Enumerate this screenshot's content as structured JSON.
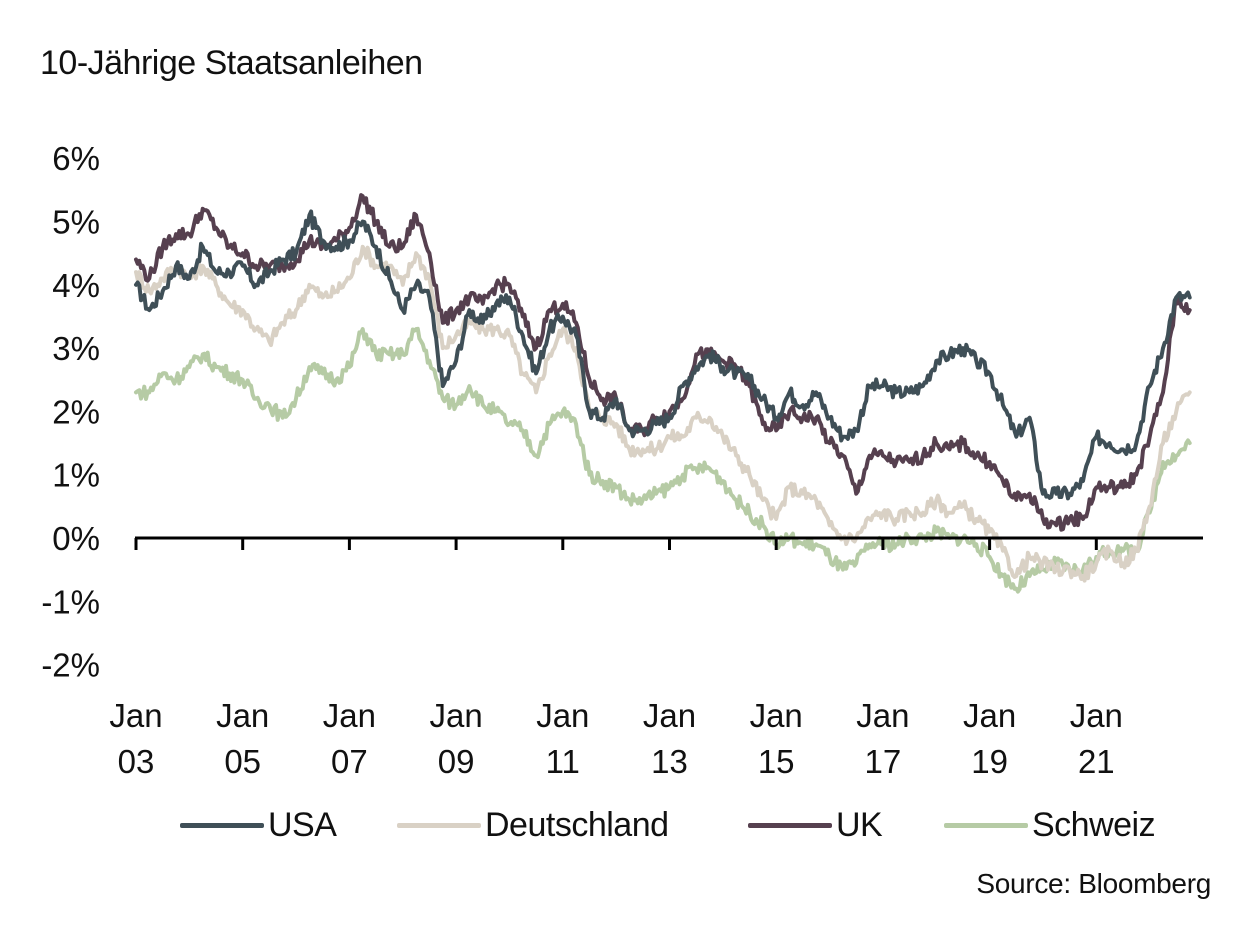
{
  "chart_data": {
    "type": "line",
    "title": "10-Jährige Staatsanleihen",
    "xlabel": "",
    "ylabel": "",
    "source": "Source: Bloomberg",
    "ylim": [
      -2,
      6
    ],
    "yticks": [
      6,
      5,
      4,
      3,
      2,
      1,
      0,
      -1,
      -2
    ],
    "ytick_labels": [
      "6%",
      "5%",
      "4%",
      "3%",
      "2%",
      "1%",
      "0%",
      "-1%",
      "-2%"
    ],
    "xlim": [
      2003.0,
      2023.0
    ],
    "xticks": [
      2003,
      2005,
      2007,
      2009,
      2011,
      2013,
      2015,
      2017,
      2019,
      2021
    ],
    "xtick_labels": [
      [
        "Jan",
        "03"
      ],
      [
        "Jan",
        "05"
      ],
      [
        "Jan",
        "07"
      ],
      [
        "Jan",
        "09"
      ],
      [
        "Jan",
        "11"
      ],
      [
        "Jan",
        "13"
      ],
      [
        "Jan",
        "15"
      ],
      [
        "Jan",
        "17"
      ],
      [
        "Jan",
        "19"
      ],
      [
        "Jan",
        "21"
      ]
    ],
    "grid": false,
    "legend_position": "bottom",
    "x_frequency": "quarterly, starting Q1 2003",
    "x_start": 2003.0,
    "x_step": 0.25,
    "series": [
      {
        "name": "USA",
        "color": "#3f4f57",
        "values": [
          4.0,
          3.6,
          3.9,
          4.3,
          4.1,
          4.6,
          4.2,
          4.2,
          4.3,
          4.0,
          4.2,
          4.4,
          4.5,
          5.1,
          4.7,
          4.6,
          4.7,
          5.0,
          4.6,
          4.1,
          3.6,
          4.0,
          3.8,
          2.4,
          2.8,
          3.6,
          3.4,
          3.7,
          3.8,
          3.2,
          2.6,
          3.3,
          3.5,
          3.2,
          2.0,
          1.9,
          2.2,
          1.7,
          1.7,
          1.8,
          1.9,
          2.4,
          2.7,
          2.9,
          2.7,
          2.6,
          2.5,
          2.2,
          1.9,
          2.3,
          2.1,
          2.3,
          1.9,
          1.6,
          1.7,
          2.4,
          2.4,
          2.3,
          2.3,
          2.4,
          2.8,
          2.9,
          3.0,
          2.8,
          2.6,
          2.1,
          1.6,
          1.9,
          0.7,
          0.7,
          0.7,
          0.9,
          1.6,
          1.5,
          1.4,
          1.5,
          2.4,
          3.0,
          3.8,
          3.8
        ]
      },
      {
        "name": "Deutschland",
        "color": "#d9d1c5",
        "values": [
          4.2,
          3.9,
          4.1,
          4.3,
          4.1,
          4.3,
          4.0,
          3.7,
          3.6,
          3.3,
          3.1,
          3.4,
          3.6,
          4.0,
          3.8,
          3.9,
          4.1,
          4.6,
          4.3,
          4.3,
          4.0,
          4.5,
          4.1,
          3.0,
          3.2,
          3.4,
          3.3,
          3.3,
          3.2,
          2.6,
          2.3,
          2.9,
          3.3,
          3.0,
          2.0,
          1.9,
          1.8,
          1.4,
          1.4,
          1.4,
          1.6,
          1.6,
          1.9,
          1.9,
          1.6,
          1.3,
          1.0,
          0.6,
          0.3,
          0.8,
          0.7,
          0.6,
          0.2,
          0.0,
          0.0,
          0.3,
          0.4,
          0.3,
          0.4,
          0.4,
          0.6,
          0.4,
          0.5,
          0.3,
          0.1,
          -0.2,
          -0.6,
          -0.3,
          -0.4,
          -0.5,
          -0.5,
          -0.6,
          -0.4,
          -0.2,
          -0.4,
          -0.2,
          0.5,
          1.5,
          2.0,
          2.3
        ]
      },
      {
        "name": "UK",
        "color": "#56404f",
        "values": [
          4.4,
          4.1,
          4.6,
          4.8,
          4.8,
          5.2,
          4.9,
          4.6,
          4.5,
          4.3,
          4.3,
          4.3,
          4.4,
          4.7,
          4.6,
          4.7,
          4.9,
          5.4,
          5.0,
          4.6,
          4.6,
          5.1,
          4.5,
          3.4,
          3.6,
          3.8,
          3.7,
          4.0,
          4.0,
          3.5,
          3.0,
          3.6,
          3.7,
          3.4,
          2.5,
          2.2,
          2.2,
          1.7,
          1.7,
          1.9,
          2.0,
          2.2,
          2.9,
          2.9,
          2.8,
          2.7,
          2.4,
          1.8,
          1.7,
          2.0,
          1.9,
          1.9,
          1.5,
          1.3,
          0.7,
          1.3,
          1.3,
          1.2,
          1.2,
          1.3,
          1.5,
          1.4,
          1.5,
          1.3,
          1.2,
          0.9,
          0.6,
          0.7,
          0.3,
          0.2,
          0.3,
          0.3,
          0.8,
          0.8,
          0.8,
          1.0,
          1.6,
          2.3,
          3.8,
          3.6
        ]
      },
      {
        "name": "Schweiz",
        "color": "#b6cba5",
        "values": [
          2.3,
          2.3,
          2.6,
          2.5,
          2.7,
          2.9,
          2.7,
          2.6,
          2.5,
          2.2,
          2.1,
          1.9,
          2.2,
          2.7,
          2.6,
          2.5,
          2.7,
          3.3,
          2.9,
          2.9,
          2.9,
          3.3,
          2.8,
          2.2,
          2.1,
          2.4,
          2.1,
          2.0,
          1.8,
          1.7,
          1.3,
          1.8,
          2.0,
          1.8,
          1.0,
          0.9,
          0.8,
          0.6,
          0.6,
          0.7,
          0.8,
          1.0,
          1.1,
          1.1,
          0.9,
          0.6,
          0.4,
          0.2,
          -0.1,
          0.0,
          -0.1,
          -0.1,
          -0.3,
          -0.5,
          -0.4,
          -0.1,
          -0.1,
          -0.1,
          0.0,
          0.0,
          0.1,
          0.0,
          0.0,
          -0.1,
          -0.3,
          -0.6,
          -0.8,
          -0.6,
          -0.5,
          -0.4,
          -0.5,
          -0.5,
          -0.3,
          -0.2,
          -0.2,
          -0.2,
          0.4,
          1.2,
          1.3,
          1.5
        ]
      }
    ]
  }
}
